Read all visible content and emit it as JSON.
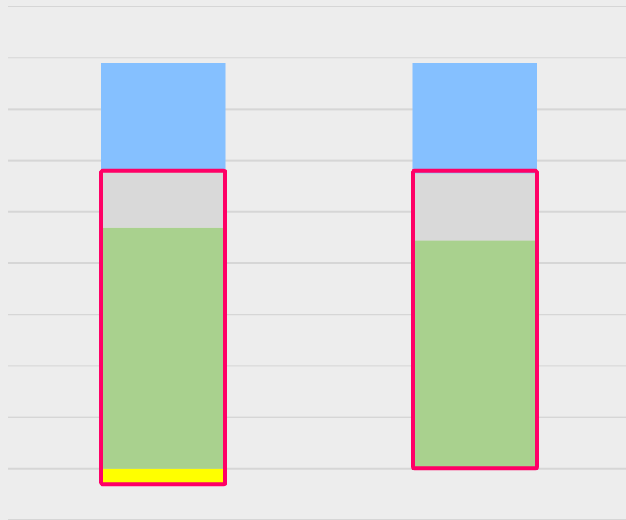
{
  "chart_data": {
    "type": "bar",
    "stacked": true,
    "categories": [
      "",
      ""
    ],
    "ylim": [
      -1,
      9
    ],
    "grid": true,
    "legend": "none",
    "series": [
      {
        "values": [
          -0.3,
          0
        ],
        "color": "#ffff00"
      },
      {
        "values": [
          4.7,
          4.45
        ],
        "color": "#a9d18e"
      },
      {
        "values": [
          1.1,
          1.3
        ],
        "color": "#d9d9d9"
      },
      {
        "values": [
          2.1,
          2.15
        ],
        "color": "#85c0ff"
      }
    ],
    "highlights": [
      {
        "category_index": 0,
        "from": -0.3,
        "to": 5.8,
        "color": "#ff0066"
      },
      {
        "category_index": 1,
        "from": 0,
        "to": 5.8,
        "color": "#ff0066"
      }
    ],
    "background_color": "#ededed",
    "gridline_color": "#d6d6d6"
  }
}
